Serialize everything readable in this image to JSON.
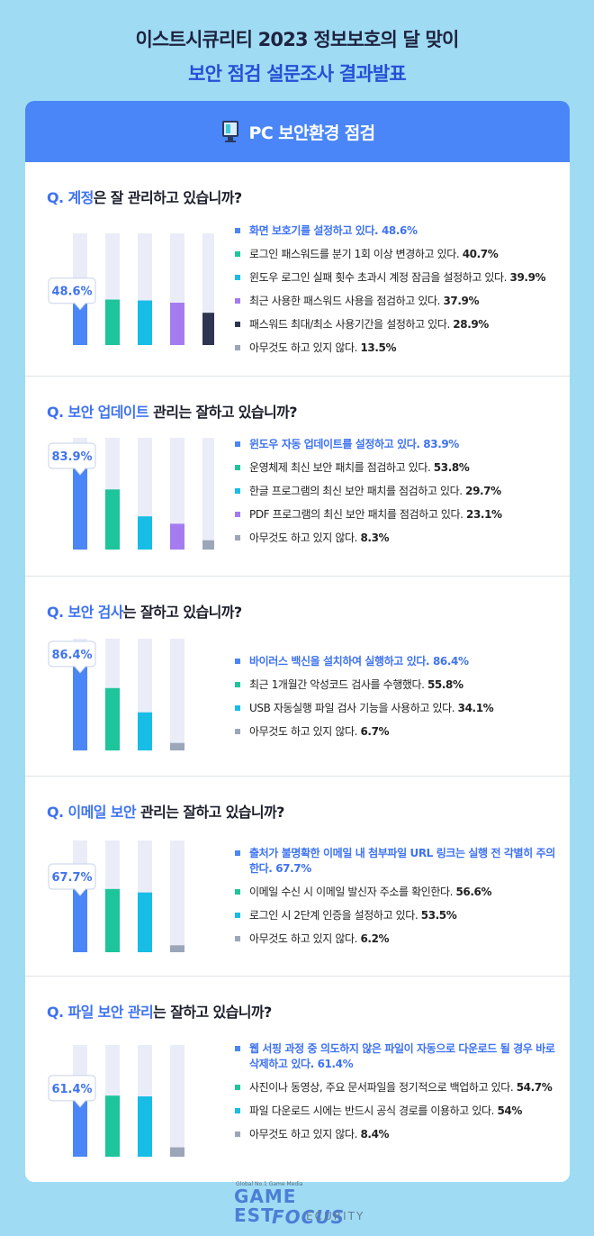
{
  "header": {
    "line1": "이스트시큐리티 2023 정보보호의 달 맞이",
    "line2": "보안 점검 설문조사 결과발표"
  },
  "card_title": "PC 보안환경 점검",
  "colors": {
    "blue": "#4a86f7",
    "green": "#1ec49a",
    "cyan": "#18bde6",
    "purple": "#a47cf0",
    "navy": "#2e3550",
    "gray": "#9ba6b8",
    "track": "#eaedf8",
    "highlight_text": "#3f73f0"
  },
  "footer": {
    "tiny": "Global No.1 Game Media",
    "game": "GAME",
    "est": "EST",
    "focus": "FOCUS",
    "ecurity": "ECURITY"
  },
  "sections": [
    {
      "q_prefix": "Q.",
      "q_highlight": "계정",
      "q_rest": "은 잘 관리하고 있습니까?",
      "items": [
        {
          "text": "화면 보호기를 설정하고 있다.",
          "value": 48.6,
          "color": "blue"
        },
        {
          "text": "로그인 패스워드를 분기 1회 이상 변경하고 있다.",
          "value": 40.7,
          "color": "green"
        },
        {
          "text": "윈도우 로그인 실패 횟수 초과시 계정 잠금을 설정하고 있다.",
          "value": 39.9,
          "color": "cyan"
        },
        {
          "text": "최근 사용한 패스워드 사용을 점검하고 있다.",
          "value": 37.9,
          "color": "purple"
        },
        {
          "text": "패스워드 최대/최소 사용기간을 설정하고 있다.",
          "value": 28.9,
          "color": "navy"
        },
        {
          "text": "아무것도 하고 있지 않다.",
          "value": 13.5,
          "color": "gray"
        }
      ]
    },
    {
      "q_prefix": "Q.",
      "q_highlight": "보안 업데이트",
      "q_rest": " 관리는 잘하고 있습니까?",
      "items": [
        {
          "text": "윈도우 자동 업데이트를 설정하고 있다.",
          "value": 83.9,
          "color": "blue"
        },
        {
          "text": "운영체제 최신 보안 패치를 점검하고 있다.",
          "value": 53.8,
          "color": "green"
        },
        {
          "text": "한글 프로그램의 최신 보안 패치를 점검하고 있다.",
          "value": 29.7,
          "color": "cyan"
        },
        {
          "text": "PDF 프로그램의 최신 보안 패치를 점검하고 있다.",
          "value": 23.1,
          "color": "purple"
        },
        {
          "text": "아무것도 하고 있지 않다.",
          "value": 8.3,
          "color": "gray"
        }
      ]
    },
    {
      "q_prefix": "Q.",
      "q_highlight": "보안 검사",
      "q_rest": "는 잘하고 있습니까?",
      "items": [
        {
          "text": "바이러스 백신을 설치하여 실행하고 있다.",
          "value": 86.4,
          "color": "blue"
        },
        {
          "text": "최근 1개월간 악성코드 검사를 수행했다.",
          "value": 55.8,
          "color": "green"
        },
        {
          "text": "USB 자동실행 파일 검사 기능을 사용하고 있다.",
          "value": 34.1,
          "color": "cyan"
        },
        {
          "text": "아무것도 하고 있지 않다.",
          "value": 6.7,
          "color": "gray"
        }
      ]
    },
    {
      "q_prefix": "Q.",
      "q_highlight": "이메일 보안",
      "q_rest": " 관리는 잘하고 있습니까?",
      "items": [
        {
          "text": "출처가 불명확한 이메일 내 첨부파일 URL 링크는 실행 전 각별히 주의한다.",
          "value": 67.7,
          "color": "blue"
        },
        {
          "text": "이메일 수신 시 이메일 발신자 주소를 확인한다.",
          "value": 56.6,
          "color": "green"
        },
        {
          "text": "로그인 시 2단계 인증을 설정하고 있다.",
          "value": 53.5,
          "color": "cyan"
        },
        {
          "text": "아무것도 하고 있지 않다.",
          "value": 6.2,
          "color": "gray"
        }
      ]
    },
    {
      "q_prefix": "Q.",
      "q_highlight": "파일 보안 관리",
      "q_rest": "는 잘하고 있습니까?",
      "items": [
        {
          "text": "웹 서핑 과정 중 의도하지 않은 파일이 자동으로 다운로드 될 경우 바로 삭제하고 있다.",
          "value": 61.4,
          "color": "blue"
        },
        {
          "text": "사진이나 동영상, 주요 문서파일을 정기적으로 백업하고 있다.",
          "value": 54.7,
          "color": "green"
        },
        {
          "text": "파일 다운로드 시에는 반드시 공식 경로를 이용하고 있다.",
          "value": 54,
          "color": "cyan"
        },
        {
          "text": "아무것도 하고 있지 않다.",
          "value": 8.4,
          "color": "gray"
        }
      ]
    }
  ],
  "chart_data": [
    {
      "type": "bar",
      "title": "Q. 계정은 잘 관리하고 있습니까?",
      "categories": [
        "화면 보호기를 설정하고 있다.",
        "로그인 패스워드를 분기 1회 이상 변경하고 있다.",
        "윈도우 로그인 실패 횟수 초과시 계정 잠금을 설정하고 있다.",
        "최근 사용한 패스워드 사용을 점검하고 있다.",
        "패스워드 최대/최소 사용기간을 설정하고 있다.",
        "아무것도 하고 있지 않다."
      ],
      "values": [
        48.6,
        40.7,
        39.9,
        37.9,
        28.9,
        13.5
      ],
      "ylim": [
        0,
        100
      ]
    },
    {
      "type": "bar",
      "title": "Q. 보안 업데이트 관리는 잘하고 있습니까?",
      "categories": [
        "윈도우 자동 업데이트를 설정하고 있다.",
        "운영체제 최신 보안 패치를 점검하고 있다.",
        "한글 프로그램의 최신 보안 패치를 점검하고 있다.",
        "PDF 프로그램의 최신 보안 패치를 점검하고 있다.",
        "아무것도 하고 있지 않다."
      ],
      "values": [
        83.9,
        53.8,
        29.7,
        23.1,
        8.3
      ],
      "ylim": [
        0,
        100
      ]
    },
    {
      "type": "bar",
      "title": "Q. 보안 검사는 잘하고 있습니까?",
      "categories": [
        "바이러스 백신을 설치하여 실행하고 있다.",
        "최근 1개월간 악성코드 검사를 수행했다.",
        "USB 자동실행 파일 검사 기능을 사용하고 있다.",
        "아무것도 하고 있지 않다."
      ],
      "values": [
        86.4,
        55.8,
        34.1,
        6.7
      ],
      "ylim": [
        0,
        100
      ]
    },
    {
      "type": "bar",
      "title": "Q. 이메일 보안 관리는 잘하고 있습니까?",
      "categories": [
        "출처가 불명확한 이메일 내 첨부파일 URL 링크는 실행 전 각별히 주의한다.",
        "이메일 수신 시 이메일 발신자 주소를 확인한다.",
        "로그인 시 2단계 인증을 설정하고 있다.",
        "아무것도 하고 있지 않다."
      ],
      "values": [
        67.7,
        56.6,
        53.5,
        6.2
      ],
      "ylim": [
        0,
        100
      ]
    },
    {
      "type": "bar",
      "title": "Q. 파일 보안 관리는 잘하고 있습니까?",
      "categories": [
        "웹 서핑 과정 중 의도하지 않은 파일이 자동으로 다운로드 될 경우 바로 삭제하고 있다.",
        "사진이나 동영상, 주요 문서파일을 정기적으로 백업하고 있다.",
        "파일 다운로드 시에는 반드시 공식 경로를 이용하고 있다.",
        "아무것도 하고 있지 않다."
      ],
      "values": [
        61.4,
        54.7,
        54,
        8.4
      ],
      "ylim": [
        0,
        100
      ]
    }
  ]
}
